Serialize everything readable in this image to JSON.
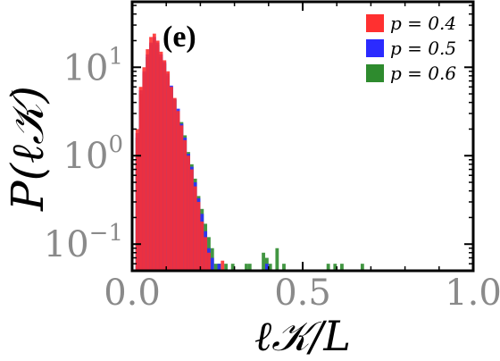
{
  "chart_data": {
    "type": "bar",
    "panel_label": "(e)",
    "xlabel": "ℓ𝒦/L",
    "ylabel": "P(ℓ𝒦)",
    "xlim": [
      0.0,
      1.0
    ],
    "ylim": [
      0.05,
      55
    ],
    "y_scale": "log",
    "x_ticks": [
      {
        "value": 0.0,
        "label": "0.0"
      },
      {
        "value": 0.5,
        "label": "0.5"
      },
      {
        "value": 1.0,
        "label": "1.0"
      }
    ],
    "y_ticks": [
      {
        "value": 0.1,
        "base": "10",
        "exp": "−1"
      },
      {
        "value": 1,
        "base": "10",
        "exp": "0"
      },
      {
        "value": 10,
        "base": "10",
        "exp": "1"
      }
    ],
    "legend_position": "top-right",
    "bin_width": 0.01,
    "series": [
      {
        "name": "p = 0.4",
        "color": "#ff3030",
        "bins": [
          [
            0.015,
            2.0
          ],
          [
            0.025,
            6.0
          ],
          [
            0.035,
            10.0
          ],
          [
            0.045,
            16.0
          ],
          [
            0.055,
            22.0
          ],
          [
            0.065,
            24.0
          ],
          [
            0.075,
            20.0
          ],
          [
            0.085,
            15.0
          ],
          [
            0.095,
            12.0
          ],
          [
            0.105,
            9.0
          ],
          [
            0.115,
            6.0
          ],
          [
            0.125,
            4.5
          ],
          [
            0.135,
            3.2
          ],
          [
            0.145,
            2.2
          ],
          [
            0.155,
            1.5
          ],
          [
            0.165,
            1.0
          ],
          [
            0.175,
            0.7
          ],
          [
            0.185,
            0.45
          ],
          [
            0.195,
            0.3
          ],
          [
            0.205,
            0.18
          ],
          [
            0.215,
            0.12
          ],
          [
            0.225,
            0.08
          ],
          [
            0.265,
            0.065
          ]
        ]
      },
      {
        "name": "p = 0.5",
        "color": "#2b2bff",
        "bins": [
          [
            0.015,
            1.8
          ],
          [
            0.025,
            5.5
          ],
          [
            0.035,
            9.0
          ],
          [
            0.045,
            14.0
          ],
          [
            0.055,
            19.0
          ],
          [
            0.065,
            22.0
          ],
          [
            0.075,
            19.0
          ],
          [
            0.085,
            14.0
          ],
          [
            0.095,
            11.5
          ],
          [
            0.105,
            8.5
          ],
          [
            0.115,
            6.2
          ],
          [
            0.125,
            4.4
          ],
          [
            0.135,
            3.4
          ],
          [
            0.145,
            2.3
          ],
          [
            0.155,
            1.6
          ],
          [
            0.165,
            1.05
          ],
          [
            0.175,
            0.75
          ],
          [
            0.185,
            0.5
          ],
          [
            0.195,
            0.33
          ],
          [
            0.205,
            0.22
          ],
          [
            0.215,
            0.14
          ],
          [
            0.225,
            0.09
          ],
          [
            0.235,
            0.07
          ],
          [
            0.255,
            0.06
          ],
          [
            0.395,
            0.06
          ]
        ]
      },
      {
        "name": "p = 0.6",
        "color": "#2e8b2e",
        "bins": [
          [
            0.015,
            1.6
          ],
          [
            0.025,
            5.0
          ],
          [
            0.035,
            8.5
          ],
          [
            0.045,
            13.0
          ],
          [
            0.055,
            18.0
          ],
          [
            0.065,
            20.0
          ],
          [
            0.075,
            18.0
          ],
          [
            0.085,
            13.0
          ],
          [
            0.095,
            11.0
          ],
          [
            0.105,
            8.0
          ],
          [
            0.115,
            6.0
          ],
          [
            0.125,
            4.3
          ],
          [
            0.135,
            3.2
          ],
          [
            0.145,
            2.4
          ],
          [
            0.155,
            1.7
          ],
          [
            0.165,
            1.1
          ],
          [
            0.175,
            0.8
          ],
          [
            0.185,
            0.55
          ],
          [
            0.195,
            0.35
          ],
          [
            0.205,
            0.25
          ],
          [
            0.215,
            0.17
          ],
          [
            0.225,
            0.12
          ],
          [
            0.235,
            0.09
          ],
          [
            0.245,
            0.06
          ],
          [
            0.255,
            0.06
          ],
          [
            0.275,
            0.06
          ],
          [
            0.295,
            0.06
          ],
          [
            0.335,
            0.06
          ],
          [
            0.345,
            0.06
          ],
          [
            0.385,
            0.08
          ],
          [
            0.395,
            0.07
          ],
          [
            0.405,
            0.06
          ],
          [
            0.425,
            0.09
          ],
          [
            0.445,
            0.06
          ],
          [
            0.575,
            0.06
          ],
          [
            0.595,
            0.06
          ],
          [
            0.615,
            0.06
          ],
          [
            0.675,
            0.06
          ]
        ]
      }
    ]
  }
}
